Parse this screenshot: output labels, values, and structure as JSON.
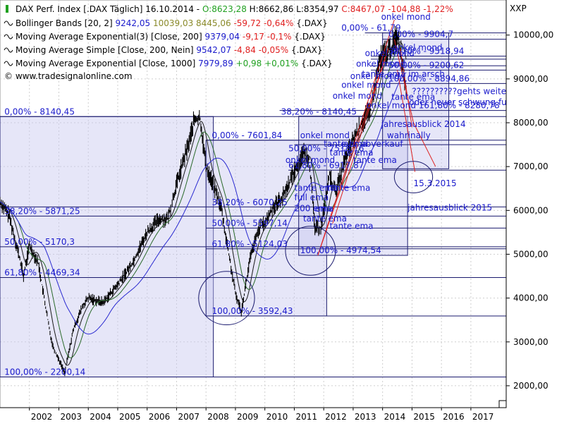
{
  "chart_data": {
    "type": "line",
    "title": "DAX Perf. Index [.DAX  Täglich] 16.10.2014",
    "ohlc": {
      "open": "O:8623,28",
      "high": "H:8662,86",
      "low": "L:8354,97",
      "close": "C:8467,07",
      "change": "-104,88",
      "change_pct": "-1,22%"
    },
    "legend": [
      {
        "name": "Bollinger Bands [20, 2]",
        "v1": "9242,05",
        "v2": "10039,03",
        "v3": "8445,06",
        "chg": "-59,72",
        "chg_pct": "-0,64%",
        "sym": "{.DAX}",
        "color": "#000000",
        "v1color": "#1a1acc",
        "v2color": "#8a8a2a",
        "v3color": "#8a8a2a",
        "chgcolor": "#e02020"
      },
      {
        "name": "Moving Average Exponential(3) [Close, 200]",
        "v1": "9379,04",
        "chg": "-9,17",
        "chg_pct": "-0,1%",
        "sym": "{.DAX}",
        "v1color": "#1a1acc",
        "chgcolor": "#e02020"
      },
      {
        "name": "Moving Average Simple [Close, 200, Nein]",
        "v1": "9542,07",
        "chg": "-4,84",
        "chg_pct": "-0,05%",
        "sym": "{.DAX}",
        "v1color": "#1a1acc",
        "chgcolor": "#e02020"
      },
      {
        "name": "Moving Average Exponential [Close, 1000]",
        "v1": "7979,89",
        "chg": "+0,98",
        "chg_pct": "+0,01%",
        "sym": "{.DAX}",
        "v1color": "#1a1acc",
        "chgcolor": "#20a020"
      }
    ],
    "source": "© www.tradesignalonline.com",
    "axis_symbol": "XXP",
    "ylim": [
      1500,
      10800
    ],
    "yticks": [
      2000,
      3000,
      4000,
      5000,
      6000,
      7000,
      8000,
      9000,
      10000
    ],
    "ytick_labels": [
      "2000,00",
      "3000,00",
      "4000,00",
      "5000,00",
      "6000,00",
      "7000,00",
      "8000,00",
      "9000,00",
      "10000,00"
    ],
    "xlim": [
      2001.0,
      2018.2
    ],
    "xticks": [
      2002,
      2003,
      2004,
      2005,
      2006,
      2007,
      2008,
      2009,
      2010,
      2011,
      2012,
      2013,
      2014,
      2015,
      2016,
      2017
    ],
    "xtick_labels": [
      "2002",
      "2003",
      "2004",
      "2005",
      "2006",
      "2007",
      "2008",
      "2009",
      "2010",
      "2011",
      "2012",
      "2013",
      "2014",
      "2015",
      "2016",
      "2017"
    ],
    "price_series": {
      "x": [
        2001.0,
        2001.3,
        2001.6,
        2001.8,
        2002.0,
        2002.3,
        2002.5,
        2002.7,
        2002.8,
        2003.0,
        2003.2,
        2003.5,
        2003.8,
        2004.0,
        2004.5,
        2005.0,
        2005.5,
        2006.0,
        2006.4,
        2006.7,
        2007.0,
        2007.4,
        2007.6,
        2007.8,
        2008.0,
        2008.3,
        2008.5,
        2008.8,
        2009.0,
        2009.2,
        2009.5,
        2009.8,
        2010.0,
        2010.3,
        2010.6,
        2011.0,
        2011.3,
        2011.5,
        2011.7,
        2011.9,
        2012.2,
        2012.4,
        2012.7,
        2013.0,
        2013.3,
        2013.6,
        2013.9,
        2014.1,
        2014.3,
        2014.5,
        2014.6,
        2014.8
      ],
      "y": [
        6200,
        5900,
        5100,
        4500,
        5200,
        4800,
        4000,
        3200,
        2900,
        2600,
        2300,
        3300,
        3800,
        4000,
        3900,
        4300,
        4800,
        5500,
        5800,
        5800,
        6600,
        7500,
        8050,
        8100,
        7000,
        6500,
        6100,
        4900,
        4100,
        3700,
        4900,
        5600,
        5700,
        6100,
        6300,
        6900,
        7300,
        7200,
        5600,
        5600,
        6800,
        6400,
        7100,
        7600,
        8000,
        8300,
        9400,
        9600,
        9700,
        10000,
        9700,
        8800
      ]
    },
    "fib_boxes": [
      {
        "x0": 2001.0,
        "x1": 2008.25,
        "y_top": 8140.45,
        "y_bottom": 2200.14
      },
      {
        "x0": 2008.0,
        "x1": 2012.1,
        "y_top": 7601.84,
        "y_bottom": 3592.43
      },
      {
        "x0": 2011.15,
        "x1": 2014.85,
        "y_top": 8150.0,
        "y_bottom": 4974.54
      },
      {
        "x0": 2014.0,
        "x1": 2016.25,
        "y_top": 10050.0,
        "y_bottom": 6950.0
      }
    ],
    "hlines": [
      {
        "y": 10050,
        "x0": 2013.4,
        "x1": 2018.2
      },
      {
        "y": 9904.7,
        "x0": 2014.0,
        "x1": 2018.2
      },
      {
        "y": 9518.94,
        "x0": 2013.6,
        "x1": 2018.2
      },
      {
        "y": 9450,
        "x0": 2013.6,
        "x1": 2018.2
      },
      {
        "y": 9300,
        "x0": 2013.6,
        "x1": 2018.2
      },
      {
        "y": 9200.62,
        "x0": 2013.6,
        "x1": 2018.2
      },
      {
        "y": 8894.86,
        "x0": 2013.7,
        "x1": 2018.2
      },
      {
        "y": 8280.78,
        "x0": 2010.5,
        "x1": 2018.2
      },
      {
        "y": 8140.45,
        "x0": 2001.0,
        "x1": 2018.2
      },
      {
        "y": 7601.84,
        "x0": 2008.0,
        "x1": 2018.2
      },
      {
        "y": 7500,
        "x0": 2011.0,
        "x1": 2018.2
      },
      {
        "y": 6917.87,
        "x0": 2010.8,
        "x1": 2018.2
      },
      {
        "y": 6080,
        "x0": 2001.0,
        "x1": 2018.2
      },
      {
        "y": 5871.25,
        "x0": 2001.0,
        "x1": 2018.2
      },
      {
        "y": 5597.14,
        "x0": 2008.0,
        "x1": 2018.2
      },
      {
        "y": 5170.3,
        "x0": 2001.0,
        "x1": 2018.2
      },
      {
        "y": 5124.03,
        "x0": 2008.0,
        "x1": 2018.2
      },
      {
        "y": 4469.34,
        "x0": 2001.0,
        "x1": 2018.2
      },
      {
        "y": 3592.43,
        "x0": 2008.0,
        "x1": 2018.2
      },
      {
        "y": 2200.14,
        "x0": 2001.0,
        "x1": 2018.2
      }
    ],
    "fib_labels": [
      {
        "x": 2001.15,
        "y": 8140.45,
        "text": "0,00% - 8140,45"
      },
      {
        "x": 2001.15,
        "y": 5871.25,
        "text": "38,20% - 5871,25"
      },
      {
        "x": 2001.15,
        "y": 5170.3,
        "text": "50,00% - 5170,3"
      },
      {
        "x": 2001.15,
        "y": 4469.34,
        "text": "61,80% - 4469,34"
      },
      {
        "x": 2001.15,
        "y": 2200.14,
        "text": "100,00% - 2200,14"
      },
      {
        "x": 2008.2,
        "y": 7601.84,
        "text": "0,00% - 7601,84"
      },
      {
        "x": 2008.2,
        "y": 6072,
        "text": "38,20% - 6070,25"
      },
      {
        "x": 2008.2,
        "y": 5597.14,
        "text": "50,00% - 5597,14"
      },
      {
        "x": 2008.2,
        "y": 5124.03,
        "text": "61,80% - 5124,03"
      },
      {
        "x": 2008.2,
        "y": 3592.43,
        "text": "100,00% - 3592,43"
      },
      {
        "x": 2010.55,
        "y": 8140,
        "text": "38,20% - 8140,45"
      },
      {
        "x": 2010.8,
        "y": 7300,
        "text": "50,00% - 7518,16"
      },
      {
        "x": 2010.8,
        "y": 6917.87,
        "text": "61,80% - 6917,87"
      },
      {
        "x": 2011.2,
        "y": 4974.54,
        "text": "100,00% - 4974,54"
      },
      {
        "x": 2013.45,
        "y": 8280.78,
        "text": "onkel mond 161,80% - 8280,78"
      },
      {
        "x": 2014.2,
        "y": 9904.7,
        "text": "0,00% - 9904,7"
      },
      {
        "x": 2014.2,
        "y": 9518.94,
        "text": "38,20% - 9518,94"
      },
      {
        "x": 2014.2,
        "y": 9200.62,
        "text": "50,00% - 9200,62"
      },
      {
        "x": 2014.2,
        "y": 8894.86,
        "text": "100,00% - 8894,86"
      },
      {
        "x": 2012.6,
        "y": 10050,
        "text": "0,00% - 61,79"
      }
    ],
    "annotations": [
      {
        "x": 2013.95,
        "y": 10350,
        "text": "onkel mond"
      },
      {
        "x": 2014.35,
        "y": 9650,
        "text": "onkel mond"
      },
      {
        "x": 2013.4,
        "y": 9520,
        "text": "onkel mond"
      },
      {
        "x": 2013.1,
        "y": 9280,
        "text": "onkel mond"
      },
      {
        "x": 2013.3,
        "y": 9050,
        "text": "tante ema im arsch"
      },
      {
        "x": 2012.9,
        "y": 9000,
        "text": "onkel mond"
      },
      {
        "x": 2012.6,
        "y": 8800,
        "text": "onkel mond"
      },
      {
        "x": 2012.3,
        "y": 8550,
        "text": "onkel mond"
      },
      {
        "x": 2014.3,
        "y": 8520,
        "text": "tante ema"
      },
      {
        "x": 2015.0,
        "y": 8650,
        "text": "??????????gehts weiter oder"
      },
      {
        "x": 2014.9,
        "y": 8400,
        "text": "oder neuer schwung fur tiefer"
      },
      {
        "x": 2013.95,
        "y": 7900,
        "text": "jahresausblick 2014"
      },
      {
        "x": 2014.15,
        "y": 7650,
        "text": "wahrinally"
      },
      {
        "x": 2011.2,
        "y": 7650,
        "text": "onkel mond"
      },
      {
        "x": 2012.0,
        "y": 7450,
        "text": "tante ema"
      },
      {
        "x": 2012.6,
        "y": 7450,
        "text": "jahr abverkauf"
      },
      {
        "x": 2012.2,
        "y": 7250,
        "text": "tante ema"
      },
      {
        "x": 2013.0,
        "y": 7080,
        "text": "tante ema"
      },
      {
        "x": 2010.7,
        "y": 7080,
        "text": "onkel mond"
      },
      {
        "x": 2011.0,
        "y": 6450,
        "text": "tante ema"
      },
      {
        "x": 2012.1,
        "y": 6450,
        "text": "tante ema"
      },
      {
        "x": 2011.0,
        "y": 6230,
        "text": "full ema"
      },
      {
        "x": 2011.0,
        "y": 5980,
        "text": "200 ema"
      },
      {
        "x": 2011.7,
        "y": 5970,
        "text": "ema"
      },
      {
        "x": 2011.3,
        "y": 5750,
        "text": "tante ema"
      },
      {
        "x": 2012.2,
        "y": 5580,
        "text": "tante ema"
      },
      {
        "x": 2015.05,
        "y": 6550,
        "text": "15.3.2015"
      },
      {
        "x": 2014.85,
        "y": 6000,
        "text": "jahresausblick 2015"
      }
    ],
    "circles": [
      {
        "cx": 2008.7,
        "cy": 4000,
        "rx": 0.95,
        "ry": 610
      },
      {
        "cx": 2011.55,
        "cy": 5080,
        "rx": 0.85,
        "ry": 560
      },
      {
        "cx": 2015.05,
        "cy": 6760,
        "rx": 0.65,
        "ry": 360
      }
    ],
    "red_lines": [
      {
        "x": [
          2011.8,
          2014.4
        ],
        "y": [
          4974,
          10350
        ]
      },
      {
        "x": [
          2011.8,
          2014.1
        ],
        "y": [
          4974,
          9500
        ]
      },
      {
        "x": [
          2012.3,
          2014.2
        ],
        "y": [
          5700,
          9700
        ]
      },
      {
        "x": [
          2014.4,
          2015.05
        ],
        "y": [
          9900,
          8000
        ]
      },
      {
        "x": [
          2015.05,
          2015.8
        ],
        "y": [
          8000,
          7000
        ]
      },
      {
        "x": [
          2014.5,
          2015.1
        ],
        "y": [
          9200,
          6880
        ]
      },
      {
        "x": [
          2014.6,
          2015.0
        ],
        "y": [
          9700,
          7900
        ]
      }
    ],
    "grid": true,
    "legend_position": "top-left"
  }
}
